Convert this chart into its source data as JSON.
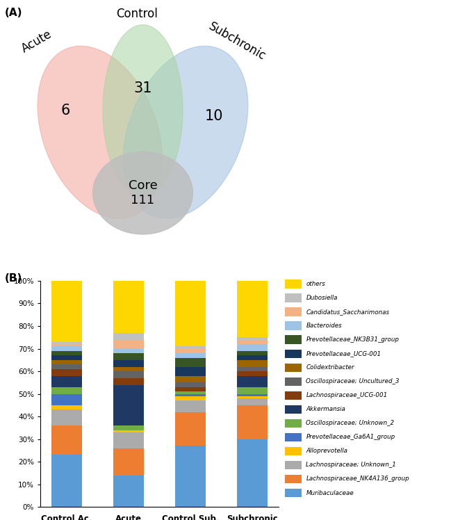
{
  "venn": {
    "acute_only": 6,
    "control_only": 31,
    "subchronic_only": 10,
    "core": 111,
    "labels": [
      "Acute",
      "Control",
      "Subchronic"
    ],
    "colors": [
      "#F4A59C",
      "#A8D5A2",
      "#A0BEE0"
    ],
    "core_color": "#BEBEBE"
  },
  "bar": {
    "categories": [
      "Control Ac.",
      "Acute",
      "Control Sub.",
      "Subchronic"
    ],
    "species": [
      "Muribaculaceae",
      "Lachnospiraceae_NK4A136_group",
      "Lachnospiraceae; Unknown_1",
      "Alloprevotella",
      "Prevotellaceae_Ga6A1_group",
      "Oscillospiraceae; Unknown_2",
      "Akkermansia",
      "Lachnospiraceae_UCG-001",
      "Oscillospiraceae; Uncultured_3",
      "Colidextribacter",
      "Prevotellaceae_UCG-001",
      "Prevotellaceae_NK3B31_group",
      "Bacteroides",
      "Candidatus_Saccharimonas",
      "Dubosiella",
      "others"
    ],
    "colors": [
      "#5B9BD5",
      "#ED7D31",
      "#ABABAB",
      "#FFC000",
      "#4472C4",
      "#70AD47",
      "#1F3864",
      "#843C0C",
      "#636363",
      "#9C6500",
      "#17375E",
      "#375623",
      "#9DC3E6",
      "#F4B183",
      "#C0C0C0",
      "#FFD700"
    ],
    "values": {
      "Control Ac.": [
        23,
        13,
        7,
        2,
        5,
        3,
        5,
        3,
        2,
        2,
        2,
        2,
        2,
        1,
        1,
        27
      ],
      "Acute": [
        14,
        12,
        7,
        1,
        0,
        2,
        18,
        3,
        3,
        2,
        3,
        3,
        2,
        4,
        3,
        23
      ],
      "Control Sub.": [
        27,
        15,
        5,
        2,
        1,
        1,
        0,
        2,
        2,
        3,
        4,
        4,
        2,
        2,
        1,
        29
      ],
      "Subchronic": [
        30,
        15,
        3,
        1,
        1,
        3,
        5,
        2,
        2,
        3,
        2,
        2,
        3,
        2,
        1,
        25
      ]
    }
  }
}
